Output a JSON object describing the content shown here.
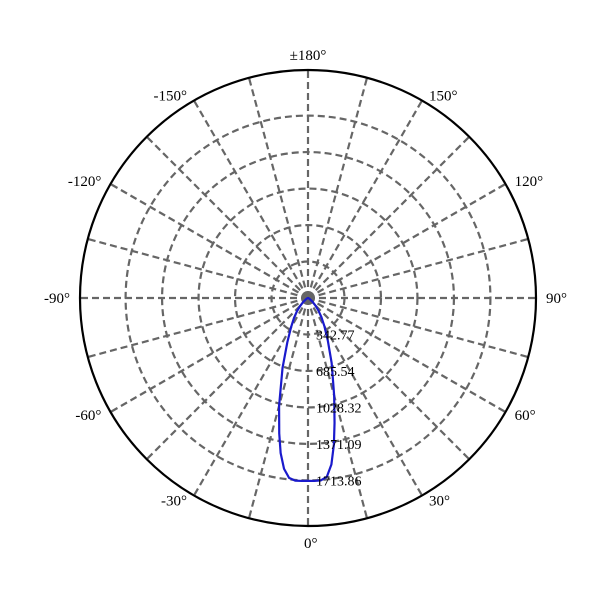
{
  "chart_data": {
    "type": "polar",
    "title": "",
    "angle_ticks": [
      {
        "deg": 0,
        "label": "0°"
      },
      {
        "deg": 30,
        "label": "30°"
      },
      {
        "deg": 60,
        "label": "60°"
      },
      {
        "deg": 90,
        "label": "90°"
      },
      {
        "deg": 120,
        "label": "120°"
      },
      {
        "deg": 150,
        "label": "150°"
      },
      {
        "deg": 180,
        "label": "±180°"
      },
      {
        "deg": -150,
        "label": "-150°"
      },
      {
        "deg": -120,
        "label": "-120°"
      },
      {
        "deg": -90,
        "label": "-90°"
      },
      {
        "deg": -60,
        "label": "-60°"
      },
      {
        "deg": -30,
        "label": "-30°"
      }
    ],
    "radial_ticks": [
      {
        "value": 342.77,
        "label": "342.77"
      },
      {
        "value": 685.54,
        "label": "685.54"
      },
      {
        "value": 1028.32,
        "label": "1028.32"
      },
      {
        "value": 1371.09,
        "label": "1371.09"
      },
      {
        "value": 1713.86,
        "label": "1713.86"
      }
    ],
    "radial_max": 2142.33,
    "angle_grid_step_deg": 15,
    "grid": true,
    "colors": {
      "curve": "#1a1acc",
      "grid": "#666666",
      "outline": "#000000"
    },
    "series": [
      {
        "points": [
          {
            "angle": -90,
            "value": 0
          },
          {
            "angle": -75,
            "value": 5
          },
          {
            "angle": -60,
            "value": 20
          },
          {
            "angle": -50,
            "value": 60
          },
          {
            "angle": -45,
            "value": 100
          },
          {
            "angle": -40,
            "value": 160
          },
          {
            "angle": -35,
            "value": 230
          },
          {
            "angle": -30,
            "value": 320
          },
          {
            "angle": -25,
            "value": 460
          },
          {
            "angle": -20,
            "value": 700
          },
          {
            "angle": -15,
            "value": 1050
          },
          {
            "angle": -12,
            "value": 1300
          },
          {
            "angle": -10,
            "value": 1480
          },
          {
            "angle": -8,
            "value": 1620
          },
          {
            "angle": -6,
            "value": 1700
          },
          {
            "angle": -4,
            "value": 1720
          },
          {
            "angle": -2,
            "value": 1720
          },
          {
            "angle": 0,
            "value": 1718
          },
          {
            "angle": 2,
            "value": 1720
          },
          {
            "angle": 4,
            "value": 1718
          },
          {
            "angle": 6,
            "value": 1690
          },
          {
            "angle": 8,
            "value": 1580
          },
          {
            "angle": 10,
            "value": 1400
          },
          {
            "angle": 12,
            "value": 1200
          },
          {
            "angle": 15,
            "value": 950
          },
          {
            "angle": 20,
            "value": 650
          },
          {
            "angle": 25,
            "value": 440
          },
          {
            "angle": 30,
            "value": 310
          },
          {
            "angle": 35,
            "value": 220
          },
          {
            "angle": 40,
            "value": 150
          },
          {
            "angle": 45,
            "value": 95
          },
          {
            "angle": 50,
            "value": 55
          },
          {
            "angle": 60,
            "value": 18
          },
          {
            "angle": 75,
            "value": 5
          },
          {
            "angle": 90,
            "value": 0
          }
        ]
      }
    ]
  }
}
